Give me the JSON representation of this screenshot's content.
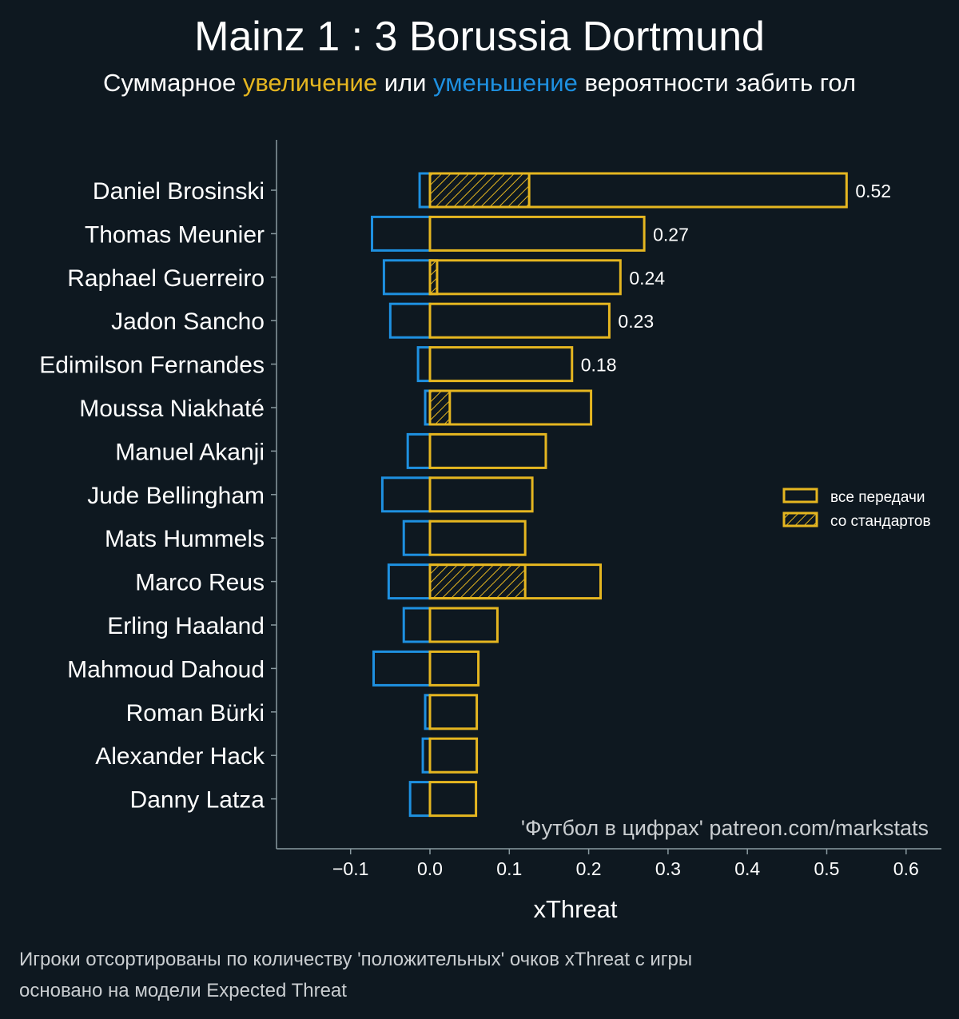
{
  "header": {
    "title": "Mainz 1 : 3 Borussia Dortmund",
    "subtitle_prefix": "Суммарное ",
    "subtitle_up": "увеличение",
    "subtitle_mid": " или ",
    "subtitle_down": "уменьшение",
    "subtitle_suffix": " вероятности забить гол"
  },
  "colors": {
    "positive": "#e5b620",
    "negative": "#1e90e0",
    "background": "#0e1820",
    "axis": "#8a9aa0"
  },
  "chart_data": {
    "type": "bar",
    "orientation": "horizontal",
    "xlabel": "xThreat",
    "xlim": [
      -0.19,
      0.65
    ],
    "xticks": [
      -0.1,
      0.0,
      0.1,
      0.2,
      0.3,
      0.4,
      0.5,
      0.6
    ],
    "xtick_labels": [
      "−0.1",
      "0.0",
      "0.1",
      "0.2",
      "0.3",
      "0.4",
      "0.5",
      "0.6"
    ],
    "categories": [
      "Daniel Brosinski",
      "Thomas Meunier",
      "Raphael Guerreiro",
      "Jadon Sancho",
      "Edimilson Fernandes",
      "Moussa Niakhaté",
      "Manuel Akanji",
      "Jude Bellingham",
      "Mats Hummels",
      "Marco Reus",
      "Erling Haaland",
      "Mahmoud Dahoud",
      "Roman Bürki",
      "Alexander Hack",
      "Danny Latza"
    ],
    "series": [
      {
        "name": "все передачи",
        "values": [
          0.525,
          0.27,
          0.24,
          0.226,
          0.179,
          0.203,
          0.146,
          0.129,
          0.12,
          0.215,
          0.085,
          0.061,
          0.059,
          0.059,
          0.058
        ]
      },
      {
        "name": "со стандартов",
        "values": [
          0.125,
          0,
          0.009,
          0,
          0,
          0.025,
          0,
          0,
          0,
          0.12,
          0,
          0,
          0,
          0,
          0
        ]
      },
      {
        "name": "negative",
        "values": [
          -0.013,
          -0.073,
          -0.058,
          -0.05,
          -0.015,
          -0.006,
          -0.028,
          -0.06,
          -0.033,
          -0.052,
          -0.033,
          -0.071,
          -0.006,
          -0.009,
          -0.025
        ]
      }
    ],
    "value_labels": [
      "0.52",
      "0.27",
      "0.24",
      "0.23",
      "0.18",
      "",
      "",
      "",
      "",
      "",
      "",
      "",
      "",
      "",
      ""
    ],
    "legend": {
      "position": "right",
      "items": [
        "все передачи",
        "со стандартов"
      ]
    },
    "watermark": "'Футбол в цифрах' patreon.com/markstats"
  },
  "footnotes": {
    "line1": "Игроки отсортированы по количеству 'положительных' очков xThreat с игры",
    "line2": "основано на модели Expected Threat"
  }
}
